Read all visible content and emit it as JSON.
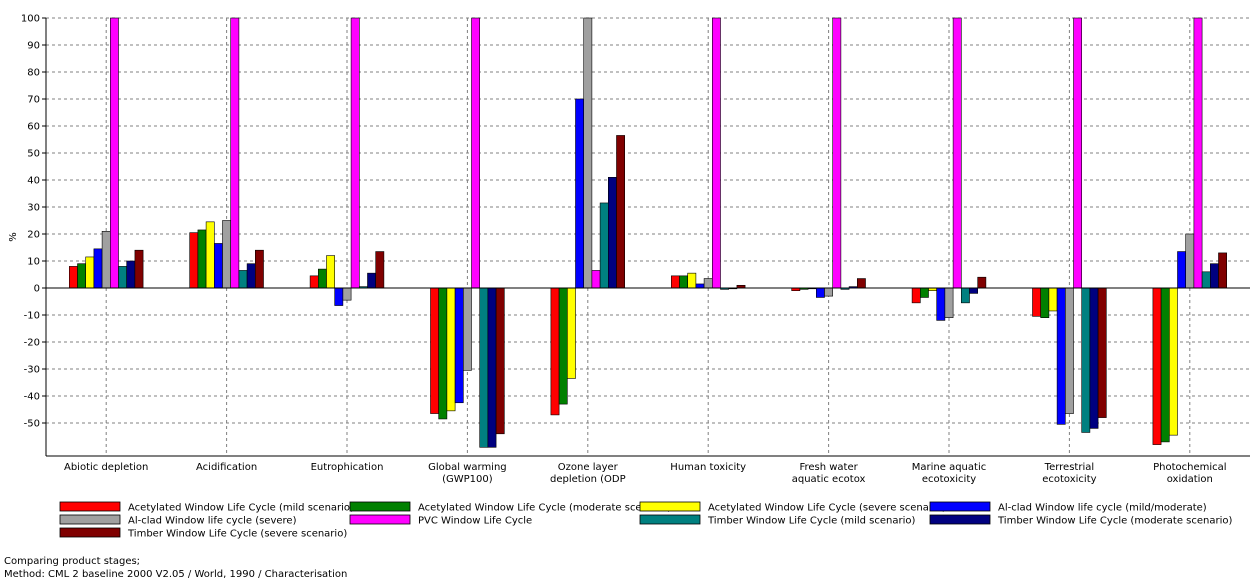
{
  "chart_data": {
    "type": "bar",
    "ylabel": "%",
    "ylim": [
      -60,
      100
    ],
    "yticks": [
      100,
      90,
      80,
      70,
      60,
      50,
      40,
      30,
      20,
      10,
      0,
      -10,
      -20,
      -30,
      -40,
      -50
    ],
    "grid": true,
    "legend_position": "bottom",
    "categories": [
      [
        "Abiotic depletion"
      ],
      [
        "Acidification"
      ],
      [
        "Eutrophication"
      ],
      [
        "Global warming",
        "(GWP100)"
      ],
      [
        "Ozone layer",
        "depletion (ODP"
      ],
      [
        "Human toxicity"
      ],
      [
        "Fresh water",
        "aquatic ecotox"
      ],
      [
        "Marine aquatic",
        "ecotoxicity"
      ],
      [
        "Terrestrial",
        "ecotoxicity"
      ],
      [
        "Photochemical",
        "oxidation"
      ]
    ],
    "series": [
      {
        "name": "Acetylated Window Life Cycle (mild scenario)",
        "color": "#ff0000",
        "values": [
          8,
          20.5,
          4.5,
          -46.5,
          -47,
          4.5,
          -1,
          -5.5,
          -10.5,
          -58
        ]
      },
      {
        "name": "Acetylated Window Life Cycle (moderate scenario)",
        "color": "#008000",
        "values": [
          9,
          21.5,
          7,
          -48.5,
          -43,
          4.5,
          -0.5,
          -3.5,
          -11,
          -57
        ]
      },
      {
        "name": "Acetylated Window Life Cycle (severe scenario)",
        "color": "#ffff00",
        "values": [
          11.5,
          24.5,
          12,
          -45.5,
          -33.5,
          5.5,
          0,
          -1,
          -8.5,
          -54.5
        ]
      },
      {
        "name": "Al-clad Window life cycle (mild/moderate)",
        "color": "#0000ff",
        "values": [
          14.5,
          16.5,
          -6.5,
          -42.5,
          70,
          1.5,
          -3.5,
          -12,
          -50.5,
          13.5
        ]
      },
      {
        "name": "Al-clad Window life cycle (severe)",
        "color": "#a0a0a0",
        "values": [
          21,
          25,
          -4.5,
          -30.5,
          100,
          3.5,
          -3,
          -11,
          -46.5,
          20
        ]
      },
      {
        "name": "PVC Window Life Cycle",
        "color": "#ff00ff",
        "values": [
          100,
          100,
          100,
          100,
          6.5,
          100,
          100,
          100,
          100,
          100
        ]
      },
      {
        "name": "Timber Window Life Cycle (mild scenario)",
        "color": "#008080",
        "values": [
          8,
          6.5,
          0.5,
          -59,
          31.5,
          -0.5,
          -0.5,
          -5.5,
          -53.5,
          6
        ]
      },
      {
        "name": "Timber Window Life Cycle (moderate scenario)",
        "color": "#000080",
        "values": [
          10,
          9,
          5.5,
          -59,
          41,
          0,
          0.5,
          -2,
          -52,
          9
        ]
      },
      {
        "name": "Timber Window Life Cycle (severe scenario)",
        "color": "#800000",
        "values": [
          14,
          14,
          13.5,
          -54,
          56.5,
          1,
          3.5,
          4,
          -48,
          13
        ]
      }
    ]
  },
  "footer": {
    "line1": "Comparing product stages;",
    "line2": "Method: CML 2 baseline 2000 V2.05 / World, 1990 / Characterisation"
  }
}
